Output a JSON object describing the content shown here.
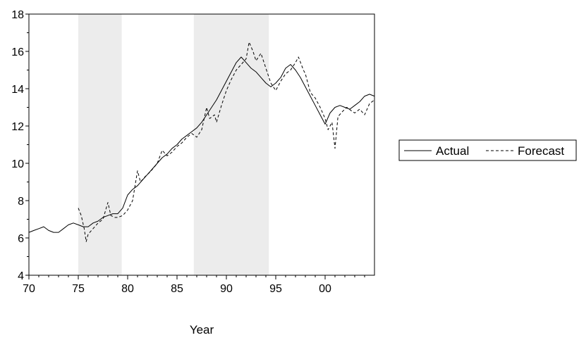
{
  "chart_data": {
    "type": "line",
    "xlabel": "Year",
    "ylabel": "",
    "xlim": [
      1970,
      2005
    ],
    "ylim": [
      4,
      18
    ],
    "y_ticks": [
      4,
      6,
      8,
      10,
      12,
      14,
      16,
      18
    ],
    "x_ticks": [
      {
        "value": 1970,
        "label": "70"
      },
      {
        "value": 1975,
        "label": "75"
      },
      {
        "value": 1980,
        "label": "80"
      },
      {
        "value": 1985,
        "label": "85"
      },
      {
        "value": 1990,
        "label": "90"
      },
      {
        "value": 1995,
        "label": "95"
      },
      {
        "value": 2000,
        "label": "00"
      }
    ],
    "shaded_regions": [
      [
        1975.0,
        1979.4
      ],
      [
        1986.7,
        1994.3
      ]
    ],
    "shade_color": "#ececec",
    "grid": false,
    "legend_position": "right",
    "series": [
      {
        "name": "Actual",
        "style": "solid",
        "points": [
          [
            1970.0,
            6.3
          ],
          [
            1970.5,
            6.4
          ],
          [
            1971.0,
            6.5
          ],
          [
            1971.5,
            6.6
          ],
          [
            1972.0,
            6.4
          ],
          [
            1972.5,
            6.3
          ],
          [
            1973.0,
            6.3
          ],
          [
            1973.5,
            6.5
          ],
          [
            1974.0,
            6.7
          ],
          [
            1974.5,
            6.8
          ],
          [
            1975.0,
            6.7
          ],
          [
            1975.5,
            6.6
          ],
          [
            1976.0,
            6.6
          ],
          [
            1976.5,
            6.8
          ],
          [
            1977.0,
            6.9
          ],
          [
            1977.5,
            7.1
          ],
          [
            1978.0,
            7.2
          ],
          [
            1978.5,
            7.3
          ],
          [
            1979.0,
            7.3
          ],
          [
            1979.5,
            7.6
          ],
          [
            1980.0,
            8.3
          ],
          [
            1980.5,
            8.6
          ],
          [
            1981.0,
            8.8
          ],
          [
            1981.5,
            9.1
          ],
          [
            1982.0,
            9.4
          ],
          [
            1982.5,
            9.7
          ],
          [
            1983.0,
            10.0
          ],
          [
            1983.5,
            10.3
          ],
          [
            1984.0,
            10.5
          ],
          [
            1984.5,
            10.8
          ],
          [
            1985.0,
            11.0
          ],
          [
            1985.5,
            11.3
          ],
          [
            1986.0,
            11.5
          ],
          [
            1986.5,
            11.7
          ],
          [
            1987.0,
            11.9
          ],
          [
            1987.5,
            12.2
          ],
          [
            1988.0,
            12.6
          ],
          [
            1988.5,
            13.0
          ],
          [
            1989.0,
            13.4
          ],
          [
            1989.5,
            13.9
          ],
          [
            1990.0,
            14.4
          ],
          [
            1990.5,
            14.9
          ],
          [
            1991.0,
            15.4
          ],
          [
            1991.5,
            15.7
          ],
          [
            1992.0,
            15.4
          ],
          [
            1992.5,
            15.1
          ],
          [
            1993.0,
            14.9
          ],
          [
            1993.5,
            14.6
          ],
          [
            1994.0,
            14.3
          ],
          [
            1994.5,
            14.1
          ],
          [
            1995.0,
            14.3
          ],
          [
            1995.5,
            14.6
          ],
          [
            1996.0,
            15.1
          ],
          [
            1996.5,
            15.3
          ],
          [
            1997.0,
            15.0
          ],
          [
            1997.5,
            14.6
          ],
          [
            1998.0,
            14.1
          ],
          [
            1998.5,
            13.6
          ],
          [
            1999.0,
            13.1
          ],
          [
            1999.5,
            12.6
          ],
          [
            2000.0,
            12.1
          ],
          [
            2000.5,
            12.7
          ],
          [
            2001.0,
            13.0
          ],
          [
            2001.5,
            13.1
          ],
          [
            2002.0,
            13.0
          ],
          [
            2002.5,
            12.9
          ],
          [
            2003.0,
            13.1
          ],
          [
            2003.5,
            13.3
          ],
          [
            2004.0,
            13.6
          ],
          [
            2004.5,
            13.7
          ],
          [
            2005.0,
            13.6
          ]
        ]
      },
      {
        "name": "Forecast",
        "style": "dashed",
        "points": [
          [
            1975.0,
            7.6
          ],
          [
            1975.3,
            7.2
          ],
          [
            1975.6,
            6.5
          ],
          [
            1975.8,
            5.8
          ],
          [
            1976.0,
            6.2
          ],
          [
            1976.5,
            6.5
          ],
          [
            1977.0,
            6.8
          ],
          [
            1977.5,
            7.0
          ],
          [
            1978.0,
            7.9
          ],
          [
            1978.3,
            7.2
          ],
          [
            1978.7,
            7.1
          ],
          [
            1979.0,
            7.1
          ],
          [
            1979.5,
            7.2
          ],
          [
            1980.0,
            7.5
          ],
          [
            1980.5,
            8.0
          ],
          [
            1981.0,
            9.6
          ],
          [
            1981.3,
            9.0
          ],
          [
            1981.8,
            9.3
          ],
          [
            1982.2,
            9.5
          ],
          [
            1982.7,
            9.8
          ],
          [
            1983.0,
            10.0
          ],
          [
            1983.5,
            10.7
          ],
          [
            1984.0,
            10.4
          ],
          [
            1984.5,
            10.6
          ],
          [
            1985.0,
            10.9
          ],
          [
            1985.5,
            11.1
          ],
          [
            1986.0,
            11.4
          ],
          [
            1986.5,
            11.6
          ],
          [
            1987.0,
            11.4
          ],
          [
            1987.5,
            11.8
          ],
          [
            1988.0,
            13.0
          ],
          [
            1988.3,
            12.4
          ],
          [
            1988.8,
            12.6
          ],
          [
            1989.0,
            12.2
          ],
          [
            1989.5,
            13.1
          ],
          [
            1990.0,
            13.9
          ],
          [
            1990.5,
            14.5
          ],
          [
            1991.0,
            15.0
          ],
          [
            1991.5,
            15.3
          ],
          [
            1992.0,
            15.6
          ],
          [
            1992.3,
            16.5
          ],
          [
            1992.7,
            16.0
          ],
          [
            1993.0,
            15.5
          ],
          [
            1993.5,
            15.9
          ],
          [
            1994.0,
            15.1
          ],
          [
            1994.5,
            14.3
          ],
          [
            1995.0,
            13.9
          ],
          [
            1995.5,
            14.4
          ],
          [
            1996.0,
            14.8
          ],
          [
            1996.5,
            15.0
          ],
          [
            1997.0,
            15.4
          ],
          [
            1997.3,
            15.7
          ],
          [
            1997.8,
            15.0
          ],
          [
            1998.0,
            14.8
          ],
          [
            1998.5,
            13.8
          ],
          [
            1999.0,
            13.5
          ],
          [
            1999.5,
            13.0
          ],
          [
            2000.0,
            12.4
          ],
          [
            2000.3,
            11.8
          ],
          [
            2000.7,
            12.2
          ],
          [
            2001.0,
            10.8
          ],
          [
            2001.3,
            12.5
          ],
          [
            2001.8,
            12.8
          ],
          [
            2002.2,
            13.0
          ],
          [
            2002.7,
            12.8
          ],
          [
            2003.0,
            12.7
          ],
          [
            2003.5,
            12.9
          ],
          [
            2004.0,
            12.6
          ],
          [
            2004.5,
            13.2
          ],
          [
            2005.0,
            13.4
          ]
        ]
      }
    ]
  }
}
